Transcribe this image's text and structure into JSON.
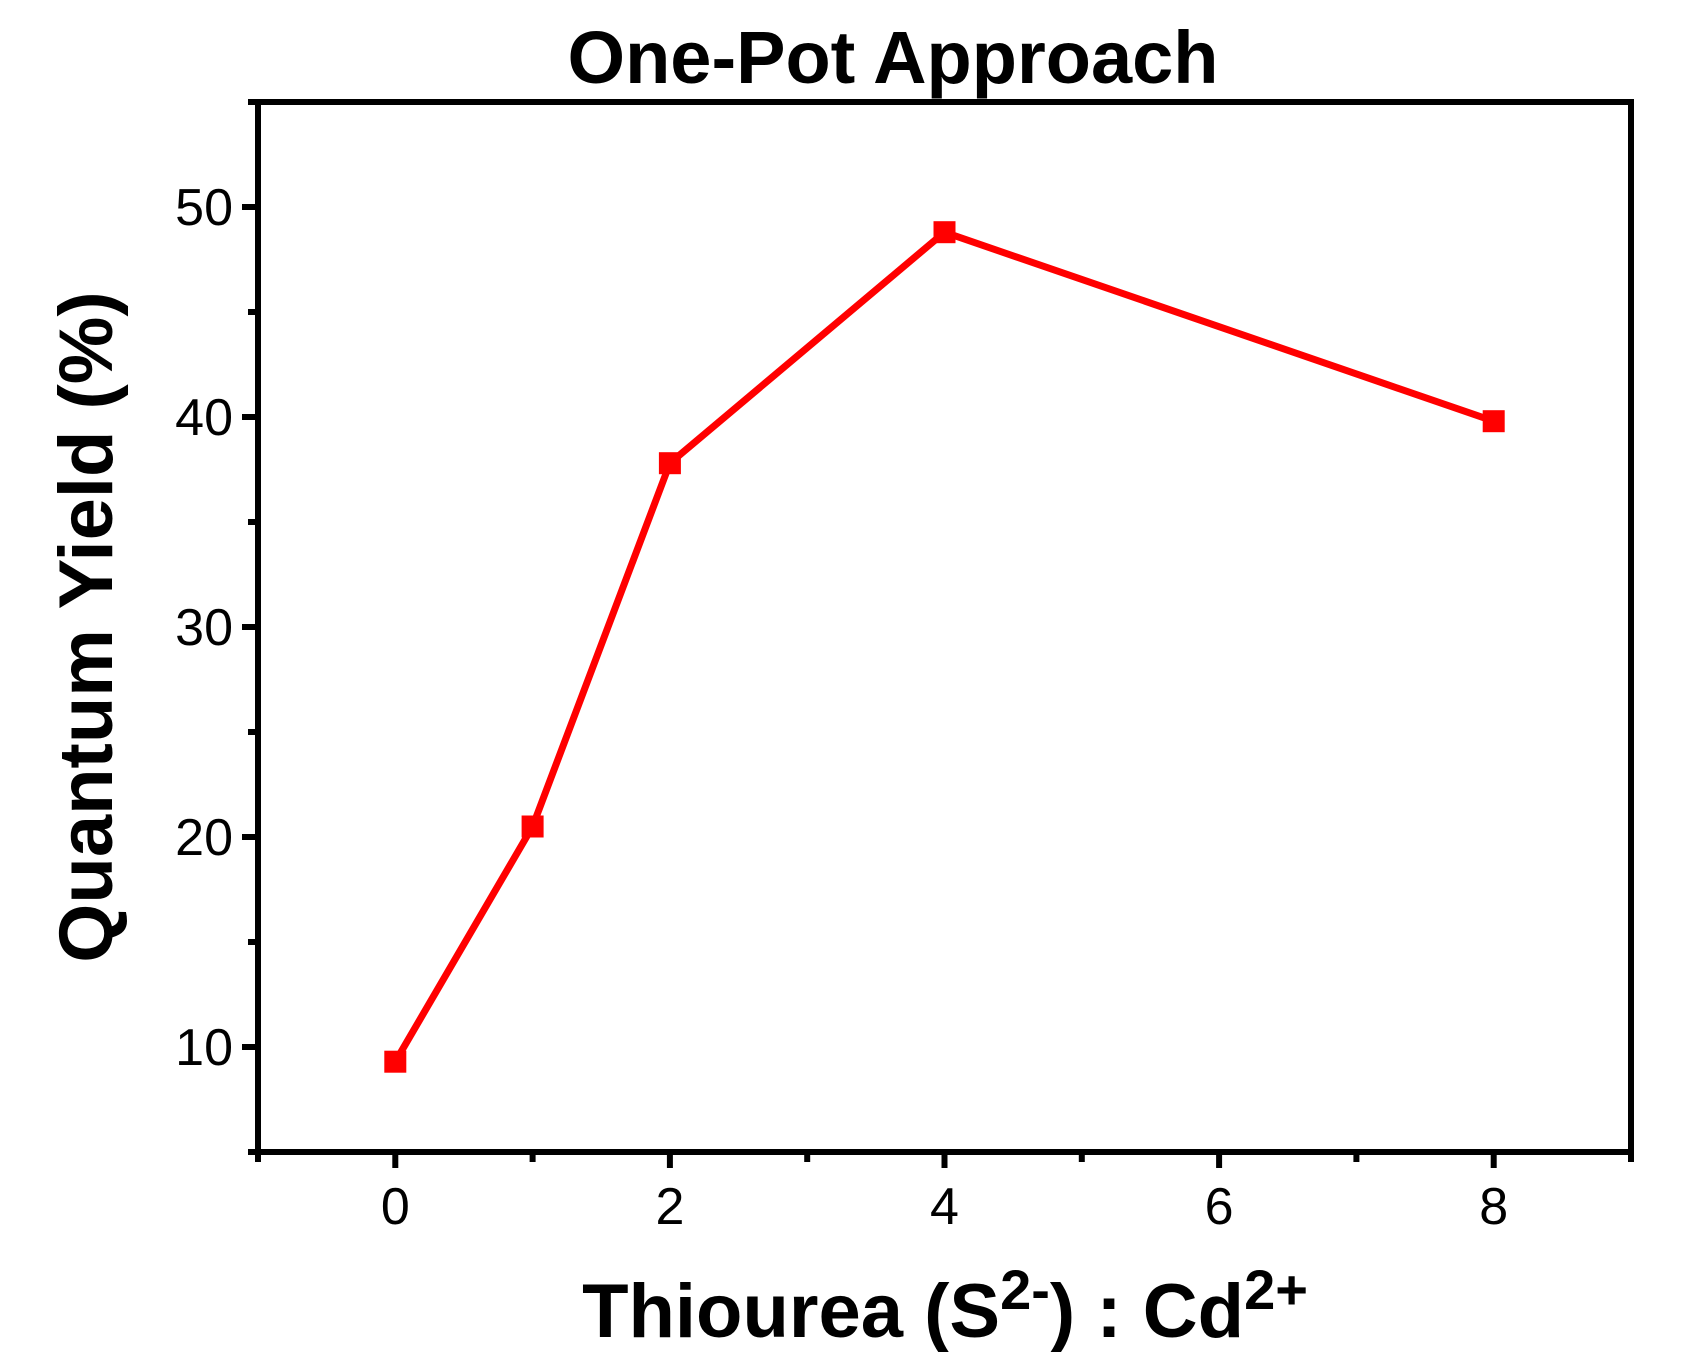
{
  "chart_data": {
    "type": "line",
    "title": "One-Pot Approach",
    "xlabel": {
      "pre": "Thiourea (S",
      "sup1": "2-",
      "mid": ") : Cd",
      "sup2": "2+"
    },
    "ylabel": "Quantum Yield (%)",
    "xlim": [
      -1,
      9
    ],
    "ylim": [
      5,
      55
    ],
    "x_ticks": [
      0,
      2,
      4,
      6,
      8
    ],
    "x_minor_ticks": [
      -1,
      1,
      3,
      5,
      7,
      9
    ],
    "y_ticks": [
      10,
      20,
      30,
      40,
      50
    ],
    "y_minor_ticks": [
      5,
      15,
      25,
      35,
      45,
      55
    ],
    "grid": false,
    "legend": "none",
    "series": [
      {
        "color": "#ff0000",
        "marker": "square",
        "x": [
          0,
          1,
          2,
          4,
          8
        ],
        "y": [
          9.3,
          20.5,
          37.8,
          48.8,
          39.8
        ]
      }
    ]
  }
}
